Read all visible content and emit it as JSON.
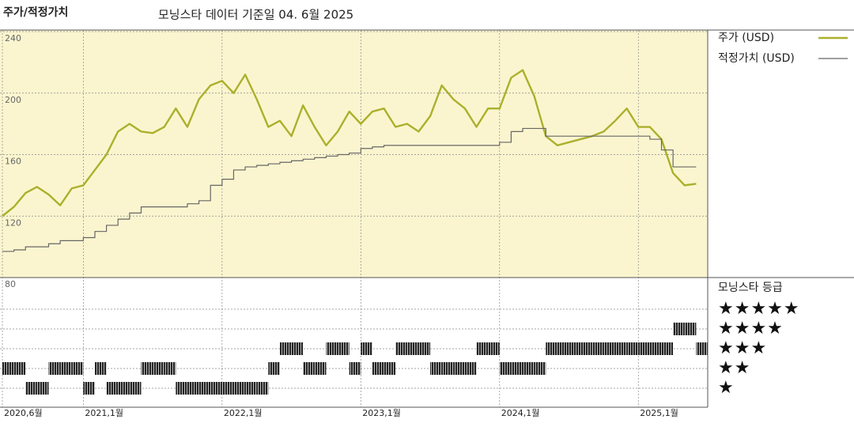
{
  "header": {
    "title": "주가/적정가치",
    "subtitle": "모닝스타 데이터 기준일 04. 6월 2025"
  },
  "chart_data": [
    {
      "type": "line",
      "x": [
        "2020-06",
        "2020-07",
        "2020-08",
        "2020-09",
        "2020-10",
        "2020-11",
        "2020-12",
        "2021-01",
        "2021-02",
        "2021-03",
        "2021-04",
        "2021-05",
        "2021-06",
        "2021-07",
        "2021-08",
        "2021-09",
        "2021-10",
        "2021-11",
        "2021-12",
        "2022-01",
        "2022-02",
        "2022-03",
        "2022-04",
        "2022-05",
        "2022-06",
        "2022-07",
        "2022-08",
        "2022-09",
        "2022-10",
        "2022-11",
        "2022-12",
        "2023-01",
        "2023-02",
        "2023-03",
        "2023-04",
        "2023-05",
        "2023-06",
        "2023-07",
        "2023-08",
        "2023-09",
        "2023-10",
        "2023-11",
        "2023-12",
        "2024-01",
        "2024-02",
        "2024-03",
        "2024-04",
        "2024-05",
        "2024-06",
        "2024-07",
        "2024-08",
        "2024-09",
        "2024-10",
        "2024-11",
        "2024-12",
        "2025-01",
        "2025-02",
        "2025-03",
        "2025-04",
        "2025-05",
        "2025-06"
      ],
      "series": [
        {
          "name": "주가 (USD)",
          "color": "#abb02c",
          "values": [
            120,
            126,
            135,
            139,
            134,
            127,
            138,
            140,
            150,
            160,
            175,
            180,
            175,
            174,
            178,
            190,
            178,
            196,
            205,
            208,
            200,
            212,
            196,
            178,
            182,
            172,
            192,
            178,
            166,
            175,
            188,
            180,
            188,
            190,
            178,
            180,
            175,
            185,
            205,
            196,
            190,
            178,
            190,
            190,
            210,
            215,
            198,
            172,
            166,
            168,
            170,
            172,
            175,
            182,
            190,
            178,
            178,
            170,
            148,
            140,
            141
          ]
        },
        {
          "name": "적정가치 (USD)",
          "color": "#666666",
          "step": true,
          "values": [
            97,
            98,
            100,
            100,
            102,
            104,
            104,
            106,
            110,
            114,
            118,
            122,
            126,
            126,
            126,
            126,
            128,
            130,
            140,
            144,
            150,
            152,
            153,
            154,
            155,
            156,
            157,
            158,
            159,
            160,
            161,
            164,
            165,
            166,
            166,
            166,
            166,
            166,
            166,
            166,
            166,
            166,
            166,
            168,
            175,
            177,
            177,
            172,
            172,
            172,
            172,
            172,
            172,
            172,
            172,
            172,
            170,
            163,
            152,
            152,
            152
          ]
        }
      ],
      "xlim": [
        "2020-06",
        "2025-07"
      ],
      "xticks": [
        {
          "value": "2020-06",
          "label": "2020,6월"
        },
        {
          "value": "2021-01",
          "label": "2021,1월"
        },
        {
          "value": "2022-01",
          "label": "2022,1월"
        },
        {
          "value": "2023-01",
          "label": "2023,1월"
        },
        {
          "value": "2024-01",
          "label": "2024,1월"
        },
        {
          "value": "2025-01",
          "label": "2025,1월"
        }
      ],
      "ylim": [
        80,
        240
      ],
      "yticks": [
        80,
        120,
        160,
        200,
        240
      ],
      "grid": true,
      "background": "#fbf5cf"
    },
    {
      "type": "rating",
      "title": "모닝스타 등급",
      "color": "#222222",
      "levels": [
        1,
        2,
        3,
        4,
        5
      ],
      "level_labels": [
        "★",
        "★★",
        "★★★",
        "★★★★",
        "★★★★★"
      ],
      "values": [
        2,
        2,
        1,
        1,
        2,
        2,
        2,
        1,
        2,
        1,
        1,
        1,
        2,
        2,
        2,
        1,
        1,
        1,
        1,
        1,
        1,
        1,
        1,
        2,
        3,
        3,
        2,
        2,
        3,
        3,
        2,
        3,
        2,
        2,
        3,
        3,
        3,
        2,
        2,
        2,
        2,
        3,
        3,
        2,
        2,
        2,
        2,
        3,
        3,
        3,
        3,
        3,
        3,
        3,
        3,
        3,
        3,
        3,
        4,
        4,
        3
      ]
    }
  ]
}
